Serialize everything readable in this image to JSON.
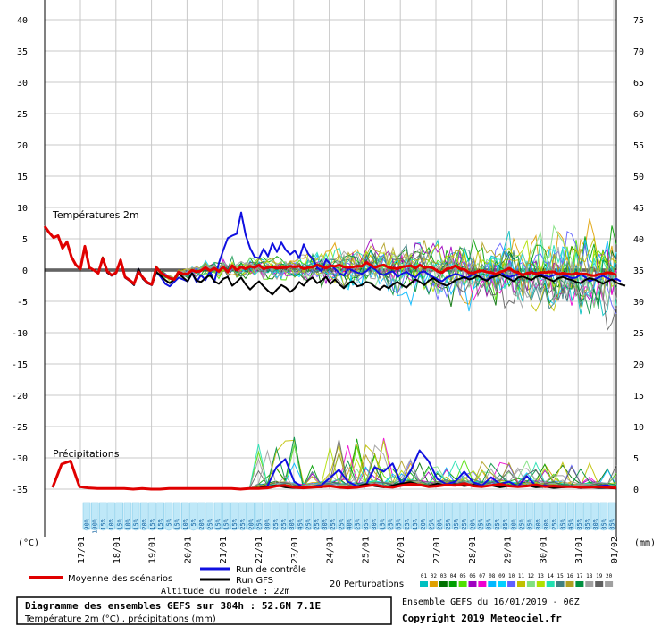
{
  "chart_data": {
    "type": "line",
    "title": "Diagramme des ensembles GEFS sur 384h : 52.6N 7.1E",
    "subtitle": "Température 2m (°C) , précipitations (mm)",
    "temp_label": "Températures 2m",
    "precip_label": "Précipitations",
    "left_unit": "(°C)",
    "right_unit": "(mm)",
    "x_tick_labels": [
      "17/01",
      "18/01",
      "19/01",
      "20/01",
      "21/01",
      "22/01",
      "23/01",
      "24/01",
      "25/01",
      "26/01",
      "27/01",
      "28/01",
      "29/01",
      "30/01",
      "31/01",
      "01/02"
    ],
    "y_temp_ticks": [
      40,
      35,
      30,
      25,
      20,
      15,
      10,
      5,
      0,
      -5,
      -10,
      -15,
      -20,
      -25,
      -30,
      -35
    ],
    "y_right_ticks": [
      75,
      70,
      65,
      60,
      55,
      50,
      45,
      40,
      35,
      30,
      25,
      20,
      15,
      10,
      5,
      0
    ],
    "ylim_temp": [
      -35,
      40
    ],
    "ylim_precip": [
      0,
      75
    ],
    "grid": true,
    "probability_badges": [
      "90%",
      "100%",
      "15%",
      "10%",
      "15%",
      "10%",
      "15%",
      "20%",
      "15%",
      "15%",
      "5%",
      "15%",
      "10%",
      "5%",
      "20%",
      "25%",
      "15%",
      "15%",
      "15%",
      "25%",
      "20%",
      "25%",
      "30%",
      "25%",
      "25%",
      "30%",
      "45%",
      "25%",
      "25%",
      "30%",
      "25%",
      "25%",
      "40%",
      "25%",
      "35%",
      "30%",
      "15%",
      "25%",
      "35%",
      "25%",
      "15%",
      "20%",
      "25%",
      "20%",
      "25%",
      "35%",
      "25%",
      "20%",
      "25%",
      "35%",
      "25%",
      "35%",
      "30%",
      "25%",
      "35%",
      "30%",
      "30%",
      "25%",
      "35%",
      "45%",
      "35%",
      "35%",
      "30%",
      "35%",
      "35%"
    ],
    "series_mean": {
      "name": "Moyenne des scénarios",
      "color": "#e00000",
      "temp": [
        7,
        6,
        5.2,
        5.5,
        3.5,
        4.5,
        2.1,
        0.8,
        0.2,
        3.8,
        0.4,
        0,
        -0.5,
        1.9,
        -0.2,
        -0.8,
        -0.4,
        1.6,
        -1.1,
        -1.6,
        -2.2,
        -0.3,
        -1.2,
        -2,
        -2.3,
        0.4,
        -0.4,
        -0.9,
        -1.3,
        -1.5,
        -0.3,
        -0.6,
        -0.6,
        0,
        -0.3,
        -0.1,
        0.4,
        -0.1,
        0.3,
        -0.2,
        0.5,
        -0.3,
        0.7,
        0,
        0.5,
        0.2,
        0.6,
        0.4,
        0.8,
        0.2,
        0.4,
        0.5,
        0.3,
        0.4,
        0.4,
        0.6,
        0.5,
        0.6,
        0.2,
        0.4,
        0.5,
        0.8,
        0.6,
        0.3,
        0.7,
        0.6,
        0.8,
        0.5,
        0.4,
        0.5,
        0.6,
        0.6,
        1.2,
        0.8,
        0.4,
        0.7,
        0.8,
        0.4,
        0.3,
        0.2,
        0.5,
        0.6,
        0.7,
        0.3,
        0.8,
        0.4,
        0.5,
        0.3,
        -0.2,
        -0.4,
        0.2,
        0.3,
        0.7,
        0.2,
        0.1,
        -0.4,
        -0.5,
        -0.2,
        -0.1,
        -0.3,
        -0.4,
        -0.6,
        -0.3,
        -0.1,
        0.3,
        -0.2,
        -0.4,
        -0.8,
        -0.5,
        -0.4,
        -0.6,
        -0.4,
        -0.4,
        -0.3,
        -0.3,
        -0.6,
        -0.5,
        -0.6,
        -0.7,
        -0.5,
        -0.6,
        -0.6,
        -0.8,
        -0.9,
        -0.7,
        -0.6,
        -0.4,
        -0.5,
        -0.8
      ],
      "precip": [
        0.3,
        4,
        4.5,
        0.4,
        0.2,
        0.1,
        0.1,
        0.1,
        0.1,
        0,
        0.1,
        0,
        0,
        0.1,
        0.1,
        0.1,
        0.1,
        0.1,
        0.1,
        0.1,
        0.1,
        0,
        0.1,
        0.1,
        0.2,
        0.5,
        0.6,
        0.3,
        0.2,
        0.3,
        0.4,
        0.5,
        0.3,
        0.2,
        0.3,
        0.5,
        0.7,
        0.4,
        0.3,
        0.6,
        0.8,
        0.7,
        0.4,
        0.5,
        0.7,
        0.6,
        0.9,
        0.5,
        0.4,
        0.6,
        0.8,
        0.5,
        0.4,
        0.5,
        0.7,
        0.4,
        0.5,
        0.4,
        0.4,
        0.3,
        0.3,
        0.4,
        0.3,
        0.2
      ]
    },
    "series_control": {
      "name": "Run de contrôle",
      "color": "#1010e0",
      "temp": [
        7,
        6,
        5.2,
        5.5,
        3.5,
        4.5,
        2.1,
        0.8,
        0.2,
        3.8,
        0.4,
        0,
        -0.5,
        2,
        -0.4,
        -0.9,
        -0.5,
        1.5,
        -1.2,
        -1.7,
        -2.4,
        0.2,
        -1.4,
        -2.1,
        -2.4,
        -0.3,
        -1.1,
        -2.2,
        -2.6,
        -1.9,
        -1.2,
        -1.5,
        -1.8,
        -0.5,
        -1.9,
        -0.8,
        -1.6,
        -0.2,
        -1.9,
        1.1,
        3.2,
        5.1,
        5.5,
        5.8,
        9.2,
        5.6,
        3.5,
        2.1,
        1.9,
        3.4,
        2.2,
        4.3,
        2.9,
        4.4,
        3.2,
        2.5,
        3.1,
        1.9,
        4.1,
        2.6,
        1.8,
        0.4,
        -0.2,
        1.7,
        0.9,
        0.2,
        -0.5,
        -0.9,
        0.3,
        -0.1,
        -0.4,
        -0.6,
        -0.2,
        0.5,
        0.1,
        -0.6,
        -0.8,
        -0.4,
        -0.2,
        -1.1,
        -0.6,
        -0.3,
        -0.8,
        -1.2,
        -0.4,
        -0.2,
        -0.7,
        -1.1,
        -1.5,
        -1.8,
        -1.2,
        -0.9,
        -0.6,
        -0.8,
        -1.3,
        -1.1,
        -0.6,
        -0.9,
        -1.4,
        -1.6,
        -1,
        -0.6,
        -0.3,
        -0.8,
        -1.1,
        -0.9,
        -0.7,
        -0.6,
        -0.7,
        -0.5,
        -0.4,
        -0.6,
        -0.9,
        -1.1,
        -0.8,
        -0.6,
        -0.8,
        -1,
        -1.3,
        -1.2,
        -0.7,
        -1.1,
        -1.8,
        -1.5,
        -1.2,
        -0.9,
        -1.3,
        -1.6,
        -1.4,
        -1.8
      ],
      "precip": [
        0.3,
        4,
        4.5,
        0.4,
        0.2,
        0.1,
        0.1,
        0.1,
        0.1,
        0,
        0.1,
        0,
        0,
        0.1,
        0.1,
        0.1,
        0.1,
        0.1,
        0.1,
        0.1,
        0.1,
        0,
        0.1,
        0.2,
        0.5,
        3.5,
        4.8,
        1.2,
        0.3,
        0.4,
        0.6,
        1.8,
        3.1,
        1.2,
        0.5,
        0.6,
        3.5,
        2.8,
        4.1,
        0.8,
        2.9,
        6.2,
        4.5,
        1.6,
        0.8,
        1.2,
        2.8,
        1.1,
        0.6,
        1.9,
        0.8,
        1.2,
        0.4,
        2.1,
        0.5,
        0.6,
        0.4,
        0.3,
        0.5,
        0.2,
        0.3,
        0.5,
        0.6,
        0.2
      ]
    },
    "series_gfs": {
      "name": "Run GFS",
      "color": "#000000",
      "temp": [
        7,
        6,
        5.2,
        5.5,
        3.5,
        4.5,
        2.1,
        0.8,
        0.2,
        3.8,
        0.4,
        0,
        -0.5,
        2,
        -0.4,
        -0.9,
        -0.5,
        1.5,
        -1.2,
        -1.7,
        -2.4,
        0.2,
        -1.4,
        -2.1,
        -2.4,
        -0.3,
        -0.9,
        -1.6,
        -2.1,
        -1.5,
        -0.6,
        -1.2,
        -1.8,
        -0.5,
        -1.7,
        -1.9,
        -1.3,
        -0.8,
        -1.8,
        -2.2,
        -1.4,
        -1.1,
        -2.5,
        -1.9,
        -1.2,
        -2.3,
        -3.1,
        -2.4,
        -1.8,
        -2.6,
        -3.3,
        -3.9,
        -3.1,
        -2.4,
        -2.8,
        -3.5,
        -2.9,
        -1.9,
        -2.5,
        -1.6,
        -1.2,
        -2.1,
        -1.7,
        -1.1,
        -2.2,
        -1.5,
        -2.3,
        -2.9,
        -2.1,
        -1.8,
        -2.6,
        -2.4,
        -1.9,
        -2.1,
        -2.7,
        -3.1,
        -2.5,
        -2.9,
        -2.3,
        -1.9,
        -2.4,
        -2.8,
        -2.1,
        -1.5,
        -1.9,
        -2.4,
        -1.7,
        -1.3,
        -1.8,
        -2.2,
        -2.5,
        -2.1,
        -1.6,
        -1.4,
        -1.1,
        -1.5,
        -1.3,
        -0.9,
        -1.4,
        -1.7,
        -1.2,
        -1,
        -0.7,
        -1.1,
        -1.4,
        -1.8,
        -1.2,
        -1,
        -1.3,
        -1.6,
        -1.1,
        -0.9,
        -1.2,
        -1.5,
        -1.8,
        -1.3,
        -1.1,
        -1.4,
        -1.6,
        -1.9,
        -2.1,
        -1.6,
        -1.3,
        -1.5,
        -1.8,
        -2.2,
        -1.8,
        -1.5,
        -2,
        -2.3,
        -2.5
      ],
      "precip": [
        0.3,
        4,
        4.5,
        0.4,
        0.2,
        0.1,
        0.1,
        0.1,
        0.1,
        0,
        0.1,
        0,
        0,
        0.1,
        0.1,
        0.1,
        0.1,
        0.1,
        0.1,
        0.1,
        0.1,
        0,
        0.1,
        0.2,
        0.4,
        0.6,
        0.3,
        0.2,
        0.2,
        0.4,
        0.3,
        0.5,
        0.3,
        0.2,
        0.4,
        0.8,
        0.5,
        0.3,
        0.6,
        0.9,
        1.1,
        0.7,
        0.5,
        0.9,
        0.6,
        0.8,
        0.5,
        0.7,
        0.4,
        0.6,
        0.3,
        0.5,
        0.4,
        0.6,
        0.3,
        0.4,
        0.2,
        0.3,
        0.4,
        0.2,
        0.3,
        0.2,
        0.2,
        0.1
      ]
    },
    "perturbation_colors": [
      "#00c0c0",
      "#e0a000",
      "#007000",
      "#00a000",
      "#50e000",
      "#a000c0",
      "#f000d0",
      "#00b8ff",
      "#00d0ff",
      "#6060ff",
      "#c0c000",
      "#80e080",
      "#b0e000",
      "#20e0b0",
      "#408080",
      "#b0a020",
      "#009040",
      "#a0a0a0",
      "#606060",
      "#a0a0a0"
    ],
    "perturbations_label": "20 Perturbations",
    "perturbation_numbers": [
      "01",
      "02",
      "03",
      "04",
      "05",
      "06",
      "07",
      "08",
      "09",
      "10",
      "11",
      "12",
      "13",
      "14",
      "15",
      "16",
      "17",
      "18",
      "19",
      "20"
    ],
    "ensemble_info": "Ensemble GEFS du 16/01/2019 - 06Z",
    "altitude": "Altitude du modele : 22m",
    "copyright": "Copyright 2019 Meteociel.fr"
  }
}
